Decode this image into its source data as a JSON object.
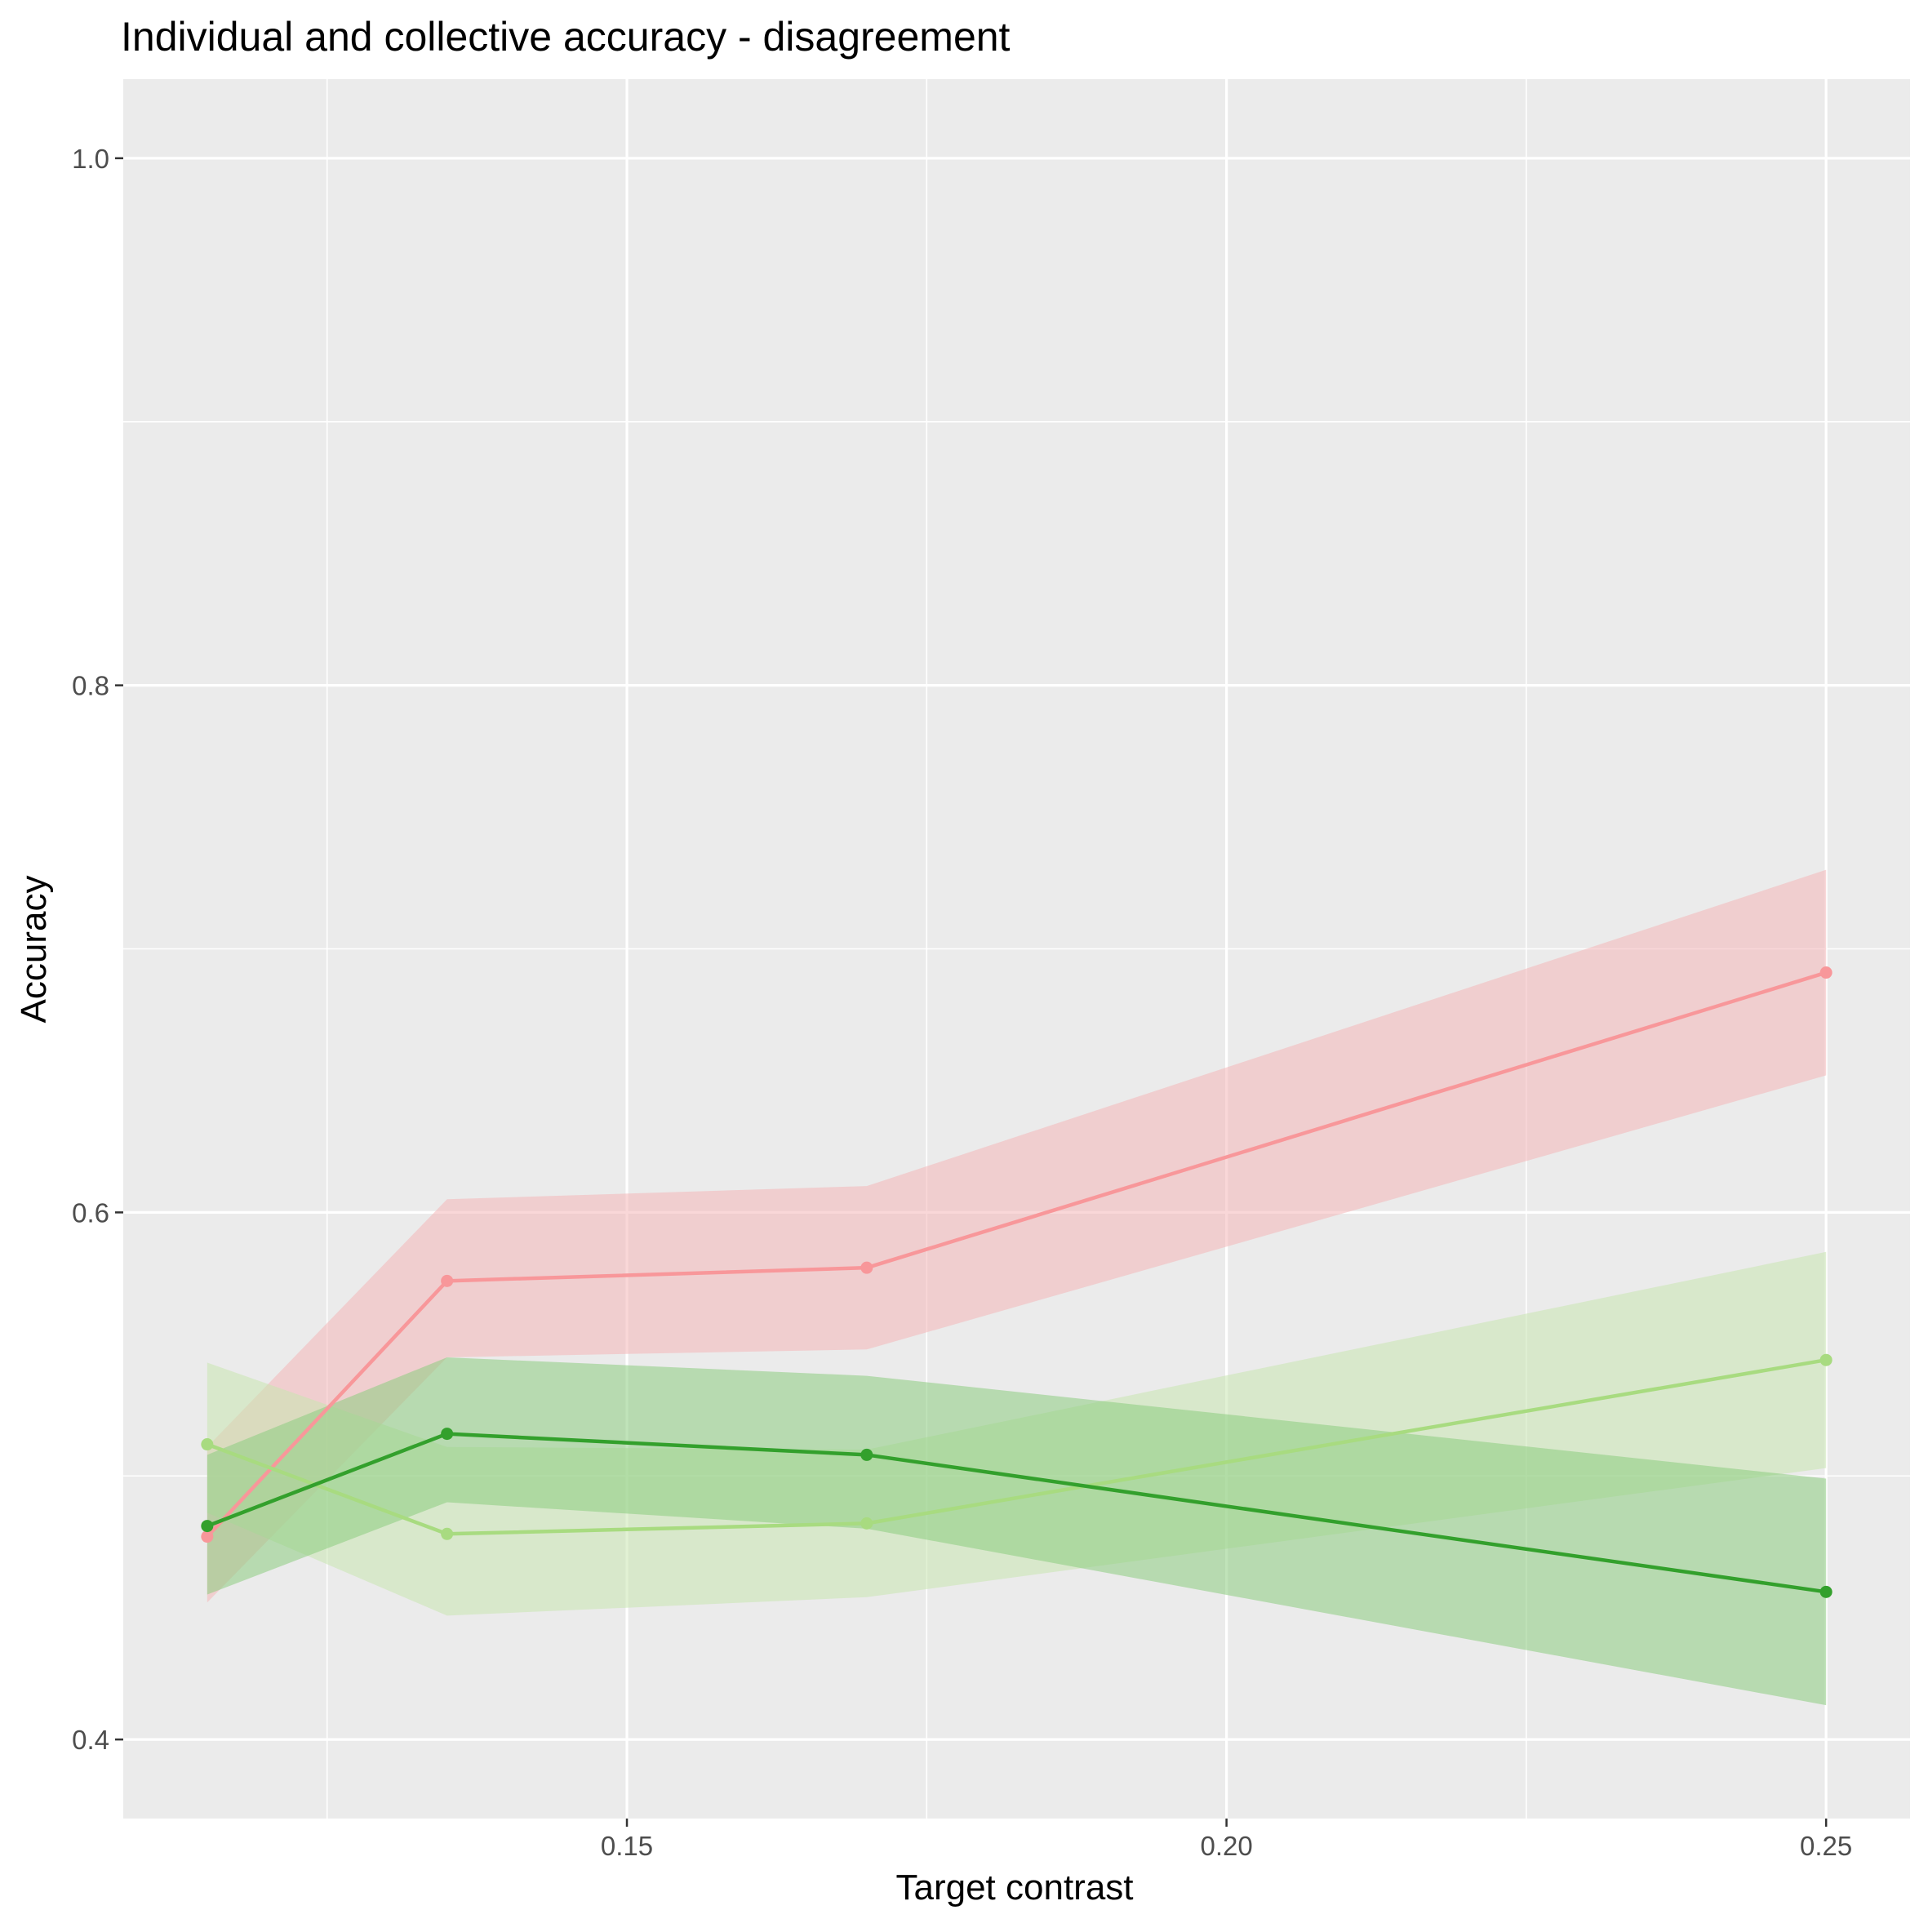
{
  "chart_data": {
    "type": "line",
    "title": "Individual and collective accuracy - disagreement",
    "xlabel": "Target contrast",
    "ylabel": "Accuracy",
    "xlim": [
      0.108,
      0.257
    ],
    "ylim": [
      0.37,
      1.03
    ],
    "x_ticks": [
      {
        "value": 0.15,
        "label": "0.15"
      },
      {
        "value": 0.2,
        "label": "0.20"
      },
      {
        "value": 0.25,
        "label": "0.25"
      }
    ],
    "x_minor_ticks": [
      0.125,
      0.175,
      0.225
    ],
    "y_ticks": [
      {
        "value": 0.4,
        "label": "0.4"
      },
      {
        "value": 0.6,
        "label": "0.6"
      },
      {
        "value": 0.8,
        "label": "0.8"
      },
      {
        "value": 1.0,
        "label": "1.0"
      }
    ],
    "y_minor_ticks": [
      0.5,
      0.7,
      0.9
    ],
    "grid": true,
    "legend": "none",
    "colors": {
      "panel": "#ebebeb",
      "grid": "#ffffff",
      "tick_text": "#4d4d4d",
      "title_text": "#000000"
    },
    "series": [
      {
        "color": "#f8979a",
        "ribbon_color": "#f4b6b8",
        "x": [
          0.115,
          0.135,
          0.17,
          0.25
        ],
        "y": [
          0.477,
          0.574,
          0.579,
          0.691
        ],
        "lower": [
          0.452,
          0.545,
          0.548,
          0.652
        ],
        "upper": [
          0.511,
          0.605,
          0.61,
          0.73
        ]
      },
      {
        "color": "#a8db80",
        "ribbon_color": "#c8e5b0",
        "x": [
          0.115,
          0.135,
          0.17,
          0.25
        ],
        "y": [
          0.512,
          0.478,
          0.482,
          0.544
        ],
        "lower": [
          0.486,
          0.447,
          0.454,
          0.503
        ],
        "upper": [
          0.543,
          0.511,
          0.51,
          0.585
        ]
      },
      {
        "color": "#33a02c",
        "ribbon_color": "#8ccc80",
        "x": [
          0.115,
          0.135,
          0.17,
          0.25
        ],
        "y": [
          0.481,
          0.516,
          0.508,
          0.456
        ],
        "lower": [
          0.455,
          0.49,
          0.48,
          0.413
        ],
        "upper": [
          0.508,
          0.545,
          0.538,
          0.499
        ]
      }
    ]
  }
}
